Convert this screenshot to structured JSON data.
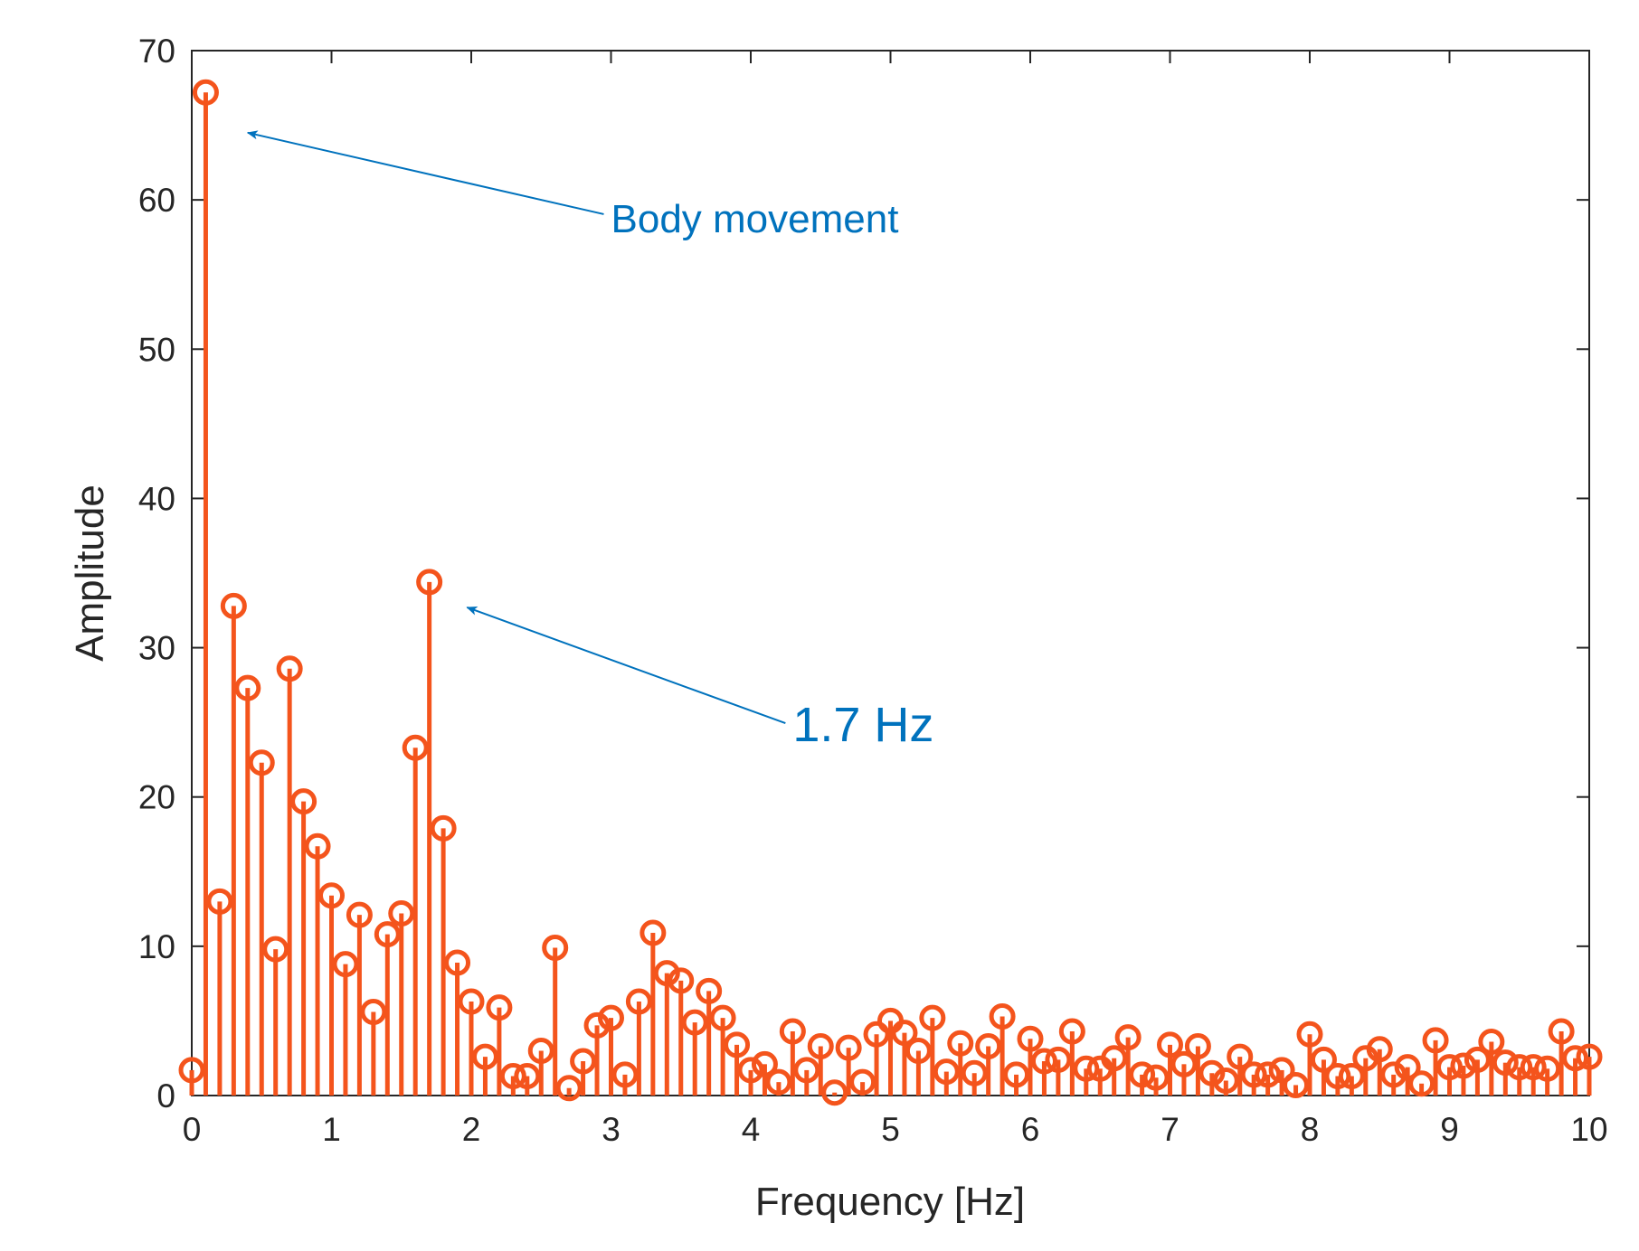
{
  "chart_data": {
    "type": "stem",
    "title": "",
    "xlabel": "Frequency [Hz]",
    "ylabel": "Amplitude",
    "xlim": [
      0,
      10
    ],
    "ylim": [
      0,
      70
    ],
    "xticks": [
      0,
      1,
      2,
      3,
      4,
      5,
      6,
      7,
      8,
      9,
      10
    ],
    "yticks": [
      0,
      10,
      20,
      30,
      40,
      50,
      60,
      70
    ],
    "grid": false,
    "series_color": "#f4541c",
    "annotation_color": "#0072bd",
    "series": [
      {
        "name": "Amplitude",
        "x": [
          0,
          0.1,
          0.2,
          0.3,
          0.4,
          0.5,
          0.6,
          0.7,
          0.8,
          0.9,
          1.0,
          1.1,
          1.2,
          1.3,
          1.4,
          1.5,
          1.6,
          1.7,
          1.8,
          1.9,
          2.0,
          2.1,
          2.2,
          2.3,
          2.4,
          2.5,
          2.6,
          2.7,
          2.8,
          2.9,
          3.0,
          3.1,
          3.2,
          3.3,
          3.4,
          3.5,
          3.6,
          3.7,
          3.8,
          3.9,
          4.0,
          4.1,
          4.2,
          4.3,
          4.4,
          4.5,
          4.6,
          4.7,
          4.8,
          4.9,
          5.0,
          5.1,
          5.2,
          5.3,
          5.4,
          5.5,
          5.6,
          5.7,
          5.8,
          5.9,
          6.0,
          6.1,
          6.2,
          6.3,
          6.4,
          6.5,
          6.6,
          6.7,
          6.8,
          6.9,
          7.0,
          7.1,
          7.2,
          7.3,
          7.4,
          7.5,
          7.6,
          7.7,
          7.8,
          7.9,
          8.0,
          8.1,
          8.2,
          8.3,
          8.4,
          8.5,
          8.6,
          8.7,
          8.8,
          8.9,
          9.0,
          9.1,
          9.2,
          9.3,
          9.4,
          9.5,
          9.6,
          9.7,
          9.8,
          9.9,
          10.0
        ],
        "y": [
          1.7,
          67.2,
          13.0,
          32.8,
          27.3,
          22.3,
          9.8,
          28.6,
          19.7,
          16.7,
          13.4,
          8.8,
          12.1,
          5.6,
          10.8,
          12.2,
          23.3,
          34.4,
          17.9,
          8.9,
          6.3,
          2.6,
          5.9,
          1.3,
          1.3,
          3.0,
          9.9,
          0.5,
          2.3,
          4.7,
          5.2,
          1.4,
          6.3,
          10.9,
          8.2,
          7.7,
          4.9,
          7.0,
          5.2,
          3.4,
          1.7,
          2.1,
          0.9,
          4.3,
          1.7,
          3.3,
          0.2,
          3.2,
          0.9,
          4.1,
          5.0,
          4.2,
          3.0,
          5.2,
          1.6,
          3.5,
          1.5,
          3.3,
          5.3,
          1.4,
          3.8,
          2.3,
          2.4,
          4.3,
          1.8,
          1.8,
          2.5,
          3.9,
          1.4,
          1.2,
          3.4,
          2.1,
          3.3,
          1.5,
          1.0,
          2.6,
          1.4,
          1.4,
          1.7,
          0.7,
          4.1,
          2.4,
          1.3,
          1.3,
          2.5,
          3.1,
          1.4,
          1.9,
          0.8,
          3.7,
          1.9,
          2.0,
          2.4,
          3.6,
          2.2,
          1.9,
          1.9,
          1.8,
          4.3,
          2.5,
          2.6
        ]
      }
    ],
    "annotations": [
      {
        "text": "Body movement",
        "x": 0.4,
        "y": 64.5,
        "text_x": 3.0,
        "text_y": 58.8,
        "label_x": 3.0,
        "label_y": 58.8
      },
      {
        "text": "1.7 Hz",
        "x": 1.97,
        "y": 32.7,
        "text_x": 4.3,
        "text_y": 24.7,
        "label_x": 4.3,
        "label_y": 24.7
      }
    ]
  }
}
